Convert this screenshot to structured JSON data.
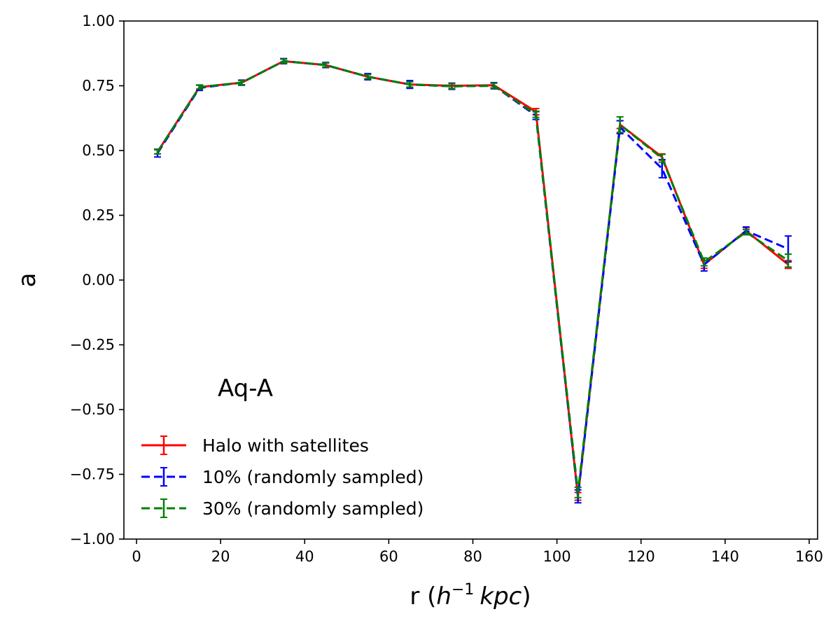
{
  "chart_data": {
    "type": "line",
    "title": "",
    "xlabel": "r (h⁻¹ kpc)",
    "xlabel_main": "r (",
    "xlabel_h": "h",
    "xlabel_exp": "−1",
    "xlabel_unit": "kpc",
    "xlabel_close": ")",
    "ylabel": "a",
    "annotation": "Aq-A",
    "xlim": [
      -3,
      162
    ],
    "ylim": [
      -1.0,
      1.0
    ],
    "xticks": [
      0,
      20,
      40,
      60,
      80,
      100,
      120,
      140,
      160
    ],
    "yticks": [
      -1.0,
      -0.75,
      -0.5,
      -0.25,
      0.0,
      0.25,
      0.5,
      0.75,
      1.0
    ],
    "xtick_labels": [
      "0",
      "20",
      "40",
      "60",
      "80",
      "100",
      "120",
      "140",
      "160"
    ],
    "ytick_labels": [
      "−1.00",
      "−0.75",
      "−0.50",
      "−0.25",
      "0.00",
      "0.25",
      "0.50",
      "0.75",
      "1.00"
    ],
    "grid": false,
    "legend_position": "lower-left",
    "x": [
      5,
      15,
      25,
      35,
      45,
      55,
      65,
      75,
      85,
      95,
      105,
      115,
      125,
      135,
      145,
      155
    ],
    "series": [
      {
        "name": "Halo with satellites",
        "color": "#ff0000",
        "dash": "solid",
        "values": [
          0.495,
          0.745,
          0.762,
          0.845,
          0.83,
          0.785,
          0.755,
          0.75,
          0.752,
          0.65,
          -0.835,
          0.6,
          0.475,
          0.06,
          0.19,
          0.06
        ],
        "errors": [
          0.008,
          0.008,
          0.008,
          0.008,
          0.008,
          0.01,
          0.012,
          0.01,
          0.01,
          0.012,
          0.015,
          0.015,
          0.012,
          0.015,
          0.012,
          0.015
        ]
      },
      {
        "name": "10% (randomly sampled)",
        "color": "#0000ff",
        "dash": "dashed",
        "values": [
          0.49,
          0.742,
          0.762,
          0.845,
          0.83,
          0.785,
          0.755,
          0.748,
          0.75,
          0.635,
          -0.835,
          0.59,
          0.43,
          0.06,
          0.19,
          0.12
        ],
        "errors": [
          0.015,
          0.01,
          0.01,
          0.01,
          0.01,
          0.012,
          0.015,
          0.012,
          0.012,
          0.015,
          0.025,
          0.025,
          0.035,
          0.025,
          0.015,
          0.05
        ]
      },
      {
        "name": "30% (randomly sampled)",
        "color": "#008000",
        "dash": "dashed",
        "values": [
          0.495,
          0.745,
          0.762,
          0.845,
          0.83,
          0.785,
          0.755,
          0.748,
          0.75,
          0.64,
          -0.82,
          0.6,
          0.47,
          0.07,
          0.185,
          0.075
        ],
        "errors": [
          0.008,
          0.008,
          0.008,
          0.008,
          0.008,
          0.008,
          0.01,
          0.01,
          0.01,
          0.012,
          0.02,
          0.03,
          0.015,
          0.015,
          0.01,
          0.025
        ]
      }
    ]
  }
}
